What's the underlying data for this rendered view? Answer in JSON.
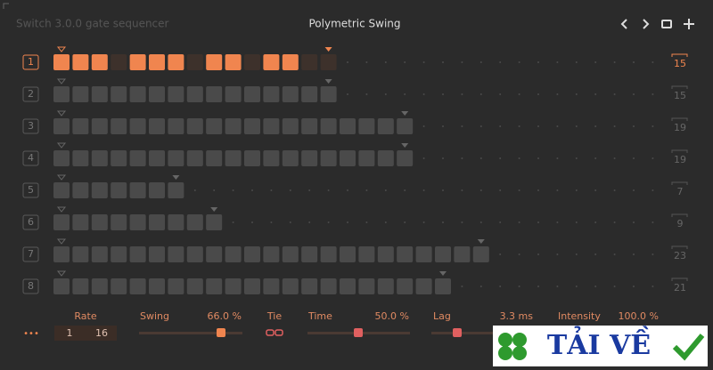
{
  "header": {
    "app_name": "Switch 3.0.0 gate sequencer",
    "title": "Polymetric Swing"
  },
  "selected_row": 0,
  "rows": [
    {
      "number": "1",
      "length": 15,
      "active_steps": [
        1,
        2,
        3,
        5,
        6,
        7,
        9,
        10,
        12,
        13
      ]
    },
    {
      "number": "2",
      "length": 15,
      "active_steps": []
    },
    {
      "number": "3",
      "length": 19,
      "active_steps": []
    },
    {
      "number": "4",
      "length": 19,
      "active_steps": []
    },
    {
      "number": "5",
      "length": 7,
      "active_steps": []
    },
    {
      "number": "6",
      "length": 9,
      "active_steps": []
    },
    {
      "number": "7",
      "length": 23,
      "active_steps": []
    },
    {
      "number": "8",
      "length": 21,
      "active_steps": []
    }
  ],
  "controls": {
    "more": "•••",
    "rate": {
      "label": "Rate",
      "numerator": "1",
      "denominator": "16"
    },
    "swing": {
      "label": "Swing",
      "value": "66.0 %"
    },
    "tie": {
      "label": "Tie"
    },
    "time": {
      "label": "Time",
      "value": "50.0 %"
    },
    "lag": {
      "label": "Lag",
      "value": "3.3 ms"
    },
    "intensity": {
      "label": "Intensity",
      "value": "100.0 %"
    }
  },
  "watermark": "TẢI VỀ"
}
